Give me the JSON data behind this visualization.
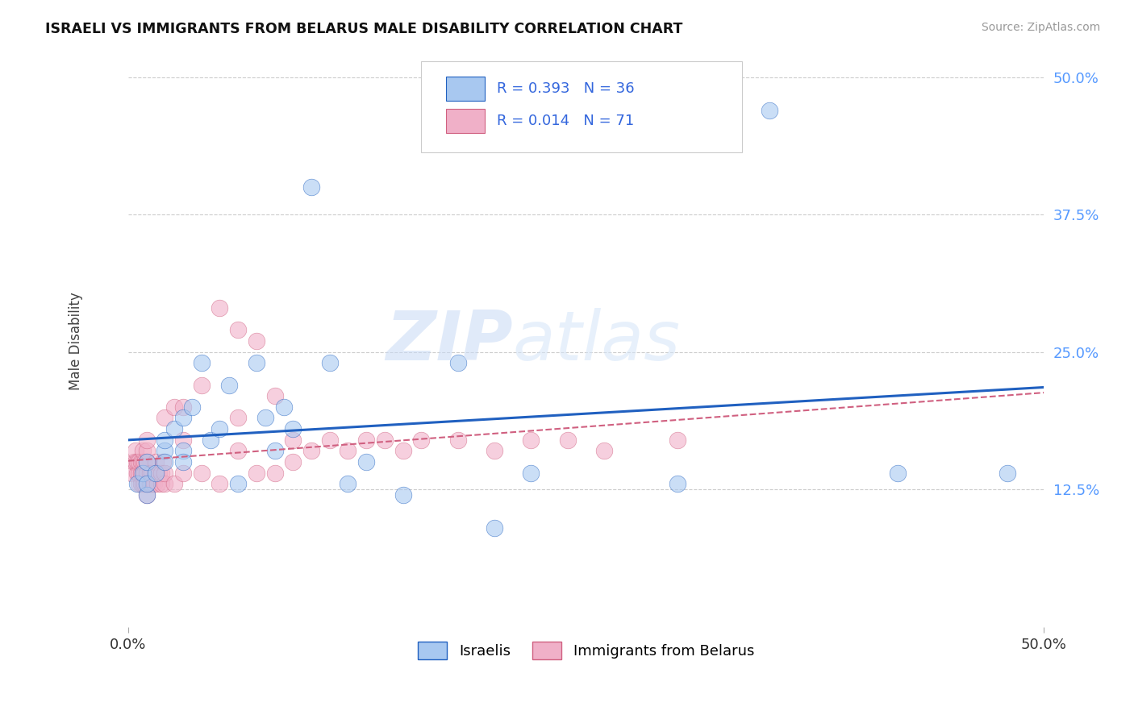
{
  "title": "ISRAELI VS IMMIGRANTS FROM BELARUS MALE DISABILITY CORRELATION CHART",
  "source": "Source: ZipAtlas.com",
  "ylabel": "Male Disability",
  "xlim": [
    0.0,
    0.5
  ],
  "ylim": [
    0.0,
    0.52
  ],
  "ytick_labels": [
    "12.5%",
    "25.0%",
    "37.5%",
    "50.0%"
  ],
  "ytick_vals": [
    0.125,
    0.25,
    0.375,
    0.5
  ],
  "xtick_vals": [
    0.0,
    0.5
  ],
  "xtick_labels": [
    "0.0%",
    "50.0%"
  ],
  "grid_color": "#cccccc",
  "background_color": "#ffffff",
  "watermark_zip": "ZIP",
  "watermark_atlas": "atlas",
  "legend_R1": "R = 0.393",
  "legend_N1": "N = 36",
  "legend_R2": "R = 0.014",
  "legend_N2": "N = 71",
  "israelis_color": "#a8c8f0",
  "immigrants_color": "#f0b0c8",
  "israelis_line_color": "#2060c0",
  "immigrants_line_color": "#d06080",
  "legend_label1": "Israelis",
  "legend_label2": "Immigrants from Belarus",
  "israelis_x": [
    0.005,
    0.008,
    0.01,
    0.01,
    0.01,
    0.015,
    0.02,
    0.02,
    0.02,
    0.025,
    0.03,
    0.03,
    0.03,
    0.035,
    0.04,
    0.045,
    0.05,
    0.055,
    0.06,
    0.07,
    0.075,
    0.08,
    0.085,
    0.09,
    0.1,
    0.11,
    0.12,
    0.13,
    0.15,
    0.18,
    0.2,
    0.22,
    0.3,
    0.35,
    0.42,
    0.48
  ],
  "israelis_y": [
    0.13,
    0.14,
    0.15,
    0.12,
    0.13,
    0.14,
    0.16,
    0.15,
    0.17,
    0.18,
    0.16,
    0.19,
    0.15,
    0.2,
    0.24,
    0.17,
    0.18,
    0.22,
    0.13,
    0.24,
    0.19,
    0.16,
    0.2,
    0.18,
    0.4,
    0.24,
    0.13,
    0.15,
    0.12,
    0.24,
    0.09,
    0.14,
    0.13,
    0.47,
    0.14,
    0.14
  ],
  "immigrants_x": [
    0.002,
    0.003,
    0.004,
    0.004,
    0.005,
    0.005,
    0.006,
    0.006,
    0.006,
    0.007,
    0.007,
    0.007,
    0.008,
    0.008,
    0.008,
    0.008,
    0.009,
    0.009,
    0.009,
    0.01,
    0.01,
    0.01,
    0.01,
    0.01,
    0.01,
    0.012,
    0.012,
    0.013,
    0.013,
    0.014,
    0.015,
    0.015,
    0.016,
    0.017,
    0.018,
    0.018,
    0.019,
    0.02,
    0.02,
    0.02,
    0.025,
    0.025,
    0.03,
    0.03,
    0.03,
    0.04,
    0.04,
    0.05,
    0.05,
    0.06,
    0.06,
    0.06,
    0.07,
    0.07,
    0.08,
    0.08,
    0.09,
    0.09,
    0.1,
    0.11,
    0.12,
    0.13,
    0.14,
    0.15,
    0.16,
    0.18,
    0.2,
    0.22,
    0.24,
    0.26,
    0.3
  ],
  "immigrants_y": [
    0.14,
    0.15,
    0.15,
    0.16,
    0.14,
    0.15,
    0.13,
    0.14,
    0.15,
    0.13,
    0.14,
    0.15,
    0.13,
    0.14,
    0.15,
    0.16,
    0.13,
    0.14,
    0.15,
    0.12,
    0.13,
    0.14,
    0.15,
    0.16,
    0.17,
    0.13,
    0.14,
    0.13,
    0.14,
    0.13,
    0.14,
    0.15,
    0.13,
    0.14,
    0.13,
    0.14,
    0.15,
    0.13,
    0.14,
    0.19,
    0.13,
    0.2,
    0.14,
    0.17,
    0.2,
    0.14,
    0.22,
    0.29,
    0.13,
    0.27,
    0.16,
    0.19,
    0.14,
    0.26,
    0.21,
    0.14,
    0.15,
    0.17,
    0.16,
    0.17,
    0.16,
    0.17,
    0.17,
    0.16,
    0.17,
    0.17,
    0.16,
    0.17,
    0.17,
    0.16,
    0.17
  ]
}
